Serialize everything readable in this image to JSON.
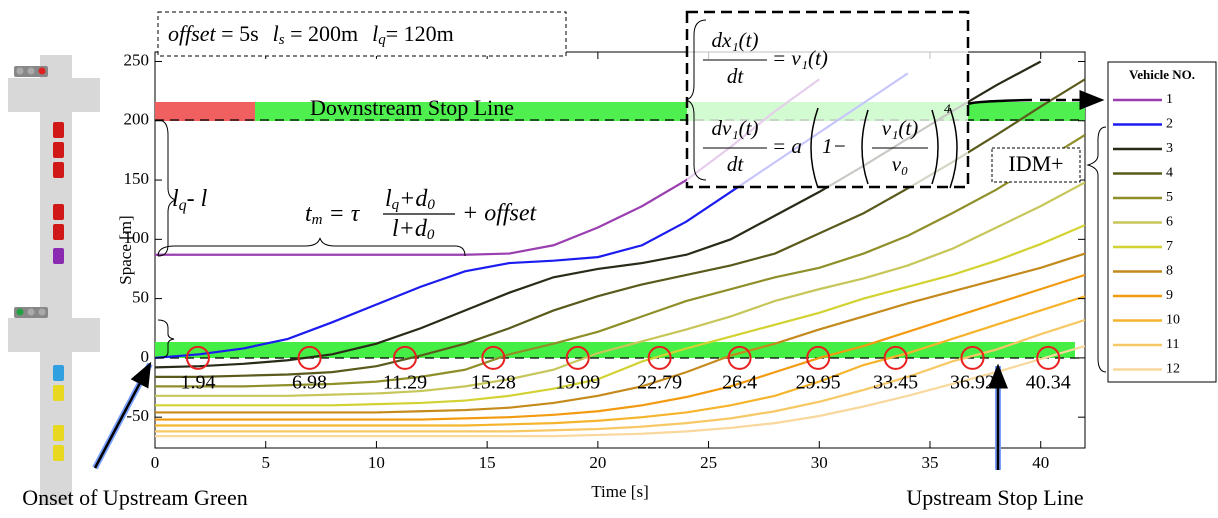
{
  "chart_data": {
    "type": "line",
    "xlabel": "Time [s]",
    "ylabel": "Space [m]",
    "xlim": [
      0,
      42
    ],
    "ylim": [
      -76,
      258
    ],
    "xticks": [
      0,
      5,
      10,
      15,
      20,
      25,
      30,
      35,
      40
    ],
    "yticks": [
      -50,
      0,
      50,
      100,
      150,
      200,
      250
    ],
    "legend_title": "Vehicle NO.",
    "x": [
      0,
      2,
      4,
      6,
      8,
      10,
      12,
      14,
      16,
      18,
      20,
      22,
      24,
      26,
      28,
      30,
      32,
      34,
      36,
      38,
      40,
      42
    ],
    "series": [
      {
        "name": "1",
        "color": "#9a3fb0",
        "values": [
          87,
          87,
          87,
          87,
          87,
          87,
          87,
          87,
          88,
          95,
          110,
          128,
          150,
          178,
          208,
          235,
          null,
          null,
          null,
          null,
          null,
          null
        ]
      },
      {
        "name": "2",
        "color": "#1c1cf0",
        "values": [
          0,
          3,
          8,
          16,
          30,
          45,
          60,
          73,
          80,
          82,
          85,
          95,
          115,
          140,
          165,
          190,
          215,
          240,
          null,
          null,
          null,
          null
        ]
      },
      {
        "name": "3",
        "color": "#2a2a18",
        "values": [
          -8,
          -7,
          -5,
          -2,
          3,
          12,
          25,
          40,
          55,
          68,
          75,
          80,
          87,
          100,
          120,
          140,
          162,
          185,
          208,
          230,
          250,
          null
        ]
      },
      {
        "name": "4",
        "color": "#5a5a1c",
        "values": [
          -16,
          -16,
          -15,
          -14,
          -12,
          -7,
          2,
          12,
          25,
          40,
          52,
          62,
          70,
          78,
          88,
          105,
          122,
          143,
          165,
          188,
          212,
          235
        ]
      },
      {
        "name": "5",
        "color": "#8f8f2a",
        "values": [
          -24,
          -24,
          -24,
          -23,
          -22,
          -20,
          -16,
          -10,
          3,
          12,
          22,
          35,
          48,
          58,
          68,
          76,
          88,
          103,
          122,
          142,
          165,
          188
        ]
      },
      {
        "name": "6",
        "color": "#c6c65a",
        "values": [
          -32,
          -32,
          -32,
          -32,
          -31,
          -30,
          -28,
          -24,
          -18,
          -10,
          4,
          14,
          24,
          35,
          48,
          58,
          67,
          78,
          92,
          110,
          128,
          148
        ]
      },
      {
        "name": "7",
        "color": "#d2d232",
        "values": [
          -40,
          -40,
          -40,
          -40,
          -40,
          -39,
          -38,
          -36,
          -32,
          -26,
          -18,
          -3,
          8,
          18,
          28,
          38,
          50,
          60,
          70,
          82,
          96,
          112
        ]
      },
      {
        "name": "8",
        "color": "#c48a1c",
        "values": [
          -46,
          -46,
          -46,
          -46,
          -46,
          -46,
          -45,
          -44,
          -42,
          -38,
          -32,
          -24,
          -12,
          2,
          12,
          24,
          35,
          46,
          56,
          66,
          76,
          88
        ]
      },
      {
        "name": "9",
        "color": "#f29a10",
        "values": [
          -52,
          -52,
          -52,
          -52,
          -52,
          -52,
          -52,
          -51,
          -50,
          -48,
          -45,
          -40,
          -33,
          -24,
          -12,
          0,
          10,
          22,
          34,
          46,
          58,
          70
        ]
      },
      {
        "name": "10",
        "color": "#f5b42c",
        "values": [
          -57,
          -57,
          -57,
          -57,
          -57,
          -57,
          -57,
          -57,
          -56,
          -55,
          -53,
          -50,
          -46,
          -40,
          -32,
          -20,
          -6,
          4,
          16,
          28,
          40,
          52
        ]
      },
      {
        "name": "11",
        "color": "#f7c866",
        "values": [
          -62,
          -62,
          -62,
          -62,
          -62,
          -62,
          -62,
          -62,
          -62,
          -61,
          -60,
          -58,
          -55,
          -51,
          -45,
          -37,
          -27,
          -16,
          -3,
          7,
          20,
          32
        ]
      },
      {
        "name": "12",
        "color": "#f8d89c",
        "values": [
          -66,
          -66,
          -66,
          -66,
          -66,
          -66,
          -66,
          -66,
          -66,
          -66,
          -65,
          -64,
          -62,
          -59,
          -55,
          -49,
          -41,
          -32,
          -22,
          -12,
          -1,
          10
        ]
      }
    ],
    "crossing_times": [
      1.94,
      6.98,
      11.29,
      15.28,
      19.09,
      22.79,
      26.4,
      29.95,
      33.45,
      36.92,
      40.34
    ],
    "annotations": {
      "params": [
        "offset",
        " = 5s",
        "l",
        "s",
        " = 200m",
        "l",
        "q",
        "= 120m"
      ],
      "downstream": "Downstream Stop Line",
      "queue": [
        "l",
        "q",
        "- ",
        "l"
      ],
      "tm": [
        "t",
        "m",
        " = τ",
        "l",
        "q",
        "+d",
        "0",
        "l+d",
        "0",
        "+ offset"
      ],
      "eq1": [
        "dx₁(t)",
        "dt",
        "= v₁(t)"
      ],
      "eq2": [
        "dv₁(t)",
        "dt",
        "= a",
        "1−",
        "v₁(t)",
        "v₀",
        "4"
      ],
      "model": "IDM+",
      "onset": "Onset of Upstream Green",
      "upstream": "Upstream Stop Line"
    }
  }
}
